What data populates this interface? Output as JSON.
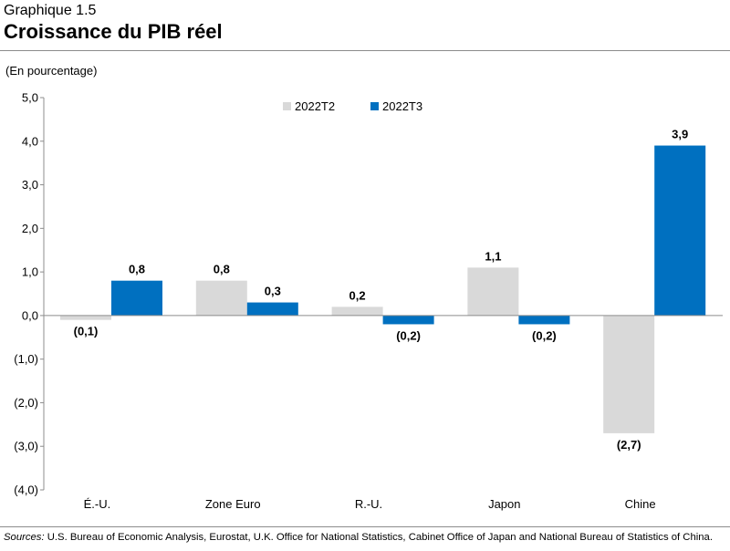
{
  "header": {
    "kicker": "Graphique 1.5",
    "title": "Croissance du PIB réel"
  },
  "source": {
    "label": "Sources:",
    "text": "U.S. Bureau of Economic Analysis, Eurostat, U.K. Office for National Statistics, Cabinet Office of Japan and National Bureau of Statistics of China."
  },
  "chart_data": {
    "type": "bar",
    "title": "Croissance du PIB réel",
    "ylabel": "(En pourcentage)",
    "xlabel": "",
    "categories": [
      "É.-U.",
      "Zone Euro",
      "R.-U.",
      "Japon",
      "Chine"
    ],
    "series": [
      {
        "name": "2022T2",
        "color": "#d9d9d9",
        "values": [
          -0.1,
          0.8,
          0.2,
          1.1,
          -2.7
        ],
        "labels": [
          "(0,1)",
          "0,8",
          "0,2",
          "1,1",
          "(2,7)"
        ]
      },
      {
        "name": "2022T3",
        "color": "#0070c0",
        "values": [
          0.8,
          0.3,
          -0.2,
          -0.2,
          3.9
        ],
        "labels": [
          "0,8",
          "0,3",
          "(0,2)",
          "(0,2)",
          "3,9"
        ]
      }
    ],
    "ylim": [
      -4.0,
      5.0
    ],
    "yticks": [
      5,
      4,
      3,
      2,
      1,
      0,
      -1,
      -2,
      -3,
      -4
    ],
    "ytick_labels": [
      "5,0",
      "4,0",
      "3,0",
      "2,0",
      "1,0",
      "0,0",
      "(1,0)",
      "(2,0)",
      "(3,0)",
      "(4,0)"
    ],
    "grid": false,
    "legend": "top-center"
  }
}
